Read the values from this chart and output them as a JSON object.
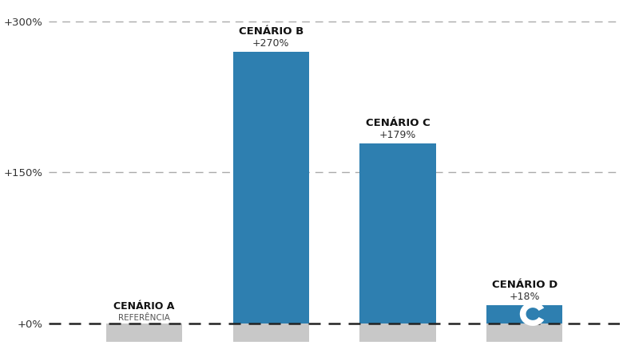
{
  "categories": [
    "A",
    "B",
    "C",
    "D"
  ],
  "values": [
    0,
    270,
    179,
    18
  ],
  "bar_color_A": "#c8c8c8",
  "bar_color_main": "#2e7fb0",
  "bar_color_base": "#c8c8c8",
  "label_top_line": [
    "REFERÊNCIA",
    "+270%",
    "+179%",
    "+18%"
  ],
  "label_bot_line": [
    "CENÁRIO A",
    "CENÁRIO B",
    "CENÁRIO C",
    "CENÁRIO D"
  ],
  "ytick_values": [
    0,
    150,
    300
  ],
  "ytick_labels": [
    "+0%",
    "+150%",
    "+300%"
  ],
  "ylim_min": -22,
  "ylim_max": 318,
  "dashed_line_color": "#aaaaaa",
  "zero_line_color": "#222222",
  "background_color": "#ffffff",
  "bar_width": 0.6,
  "base_depth": 18,
  "figsize": [
    7.8,
    4.38
  ],
  "logo_color": "#2e7fb0"
}
